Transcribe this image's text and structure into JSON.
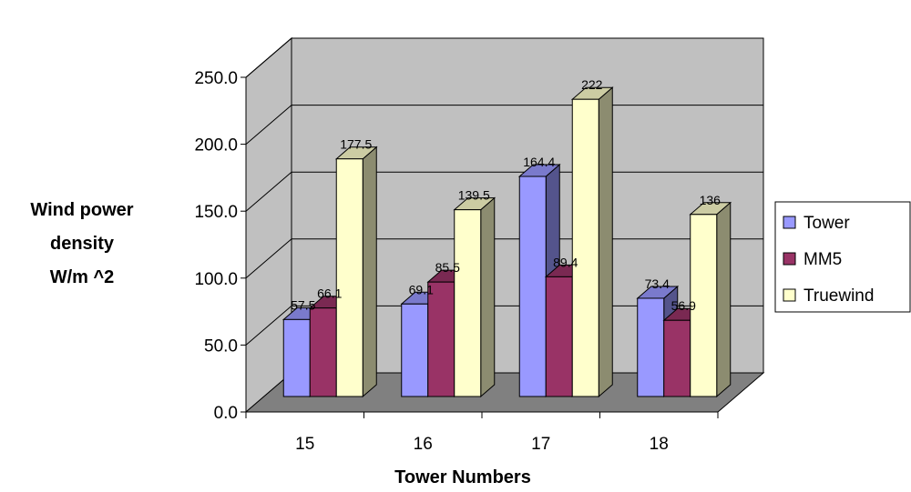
{
  "chart_data": {
    "type": "bar",
    "style": "3d-clustered-column",
    "title": "",
    "xlabel": "Tower Numbers",
    "ylabel_lines": [
      "Wind power",
      "density",
      "W/m ^2"
    ],
    "categories": [
      "15",
      "16",
      "17",
      "18"
    ],
    "ylim": [
      0,
      250
    ],
    "yticks": [
      "0.0",
      "50.0",
      "100.0",
      "150.0",
      "200.0",
      "250.0"
    ],
    "grid": true,
    "legend_position": "right",
    "series": [
      {
        "name": "Tower",
        "values": [
          57.5,
          69.1,
          164.4,
          73.4
        ],
        "labels": [
          "57.5",
          "69.1",
          "164.4",
          "73.4"
        ],
        "color": "#9999ff"
      },
      {
        "name": "MM5",
        "values": [
          66.1,
          85.5,
          89.4,
          56.9
        ],
        "labels": [
          "66.1",
          "85.5",
          "89.4",
          "56.9"
        ],
        "color": "#993366"
      },
      {
        "name": "Truewind",
        "values": [
          177.5,
          139.5,
          222,
          136
        ],
        "labels": [
          "177.5",
          "139.5",
          "222",
          "136"
        ],
        "color": "#ffffcc"
      }
    ],
    "colors": {
      "wall": "#c0c0c0",
      "floor": "#808080",
      "grid": "#000000"
    }
  }
}
